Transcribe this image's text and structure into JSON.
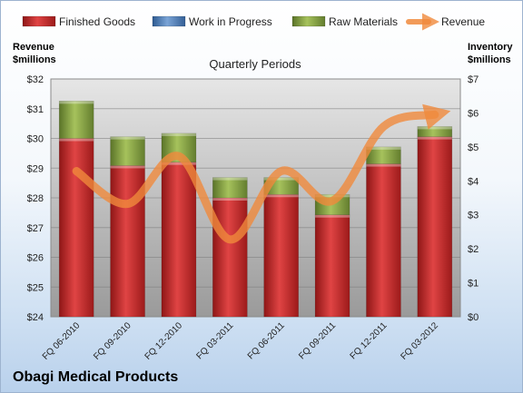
{
  "company": "Obagi Medical Products",
  "chart_data": {
    "type": "bar",
    "title": "Quarterly Periods",
    "categories": [
      "FQ 06-2010",
      "FQ 09-2010",
      "FQ 12-2010",
      "FQ 03-2011",
      "FQ 06-2011",
      "FQ 09-2011",
      "FQ 12-2011",
      "FQ 03-2012"
    ],
    "series": [
      {
        "name": "Finished Goods",
        "type": "bar",
        "axis": "right",
        "color": "#cc2a2a",
        "values": [
          5.25,
          4.45,
          4.55,
          3.5,
          3.6,
          3.0,
          4.5,
          5.3
        ]
      },
      {
        "name": "Work in Progress",
        "type": "bar",
        "axis": "right",
        "color": "#4f81bd",
        "values": [
          0,
          0,
          0,
          0,
          0,
          0,
          0,
          0
        ]
      },
      {
        "name": "Raw Materials",
        "type": "bar",
        "axis": "right",
        "color": "#8aa84a",
        "values": [
          1.1,
          0.85,
          0.85,
          0.6,
          0.5,
          0.6,
          0.5,
          0.3
        ]
      },
      {
        "name": "Revenue",
        "type": "line",
        "axis": "left",
        "color": "#f0893c",
        "values": [
          28.9,
          27.8,
          29.4,
          26.6,
          28.9,
          27.9,
          30.4,
          30.8
        ]
      }
    ],
    "left_axis": {
      "label_line1": "Revenue",
      "label_line2": "$millions",
      "ylim": [
        24,
        32
      ],
      "ticks": [
        "$24",
        "$25",
        "$26",
        "$27",
        "$28",
        "$29",
        "$30",
        "$31",
        "$32"
      ]
    },
    "right_axis": {
      "label_line1": "Inventory",
      "label_line2": "$millions",
      "ylim": [
        0,
        7
      ],
      "ticks": [
        "$0",
        "$1",
        "$2",
        "$3",
        "$4",
        "$5",
        "$6",
        "$7"
      ]
    },
    "legend_position": "top",
    "grid": true
  }
}
